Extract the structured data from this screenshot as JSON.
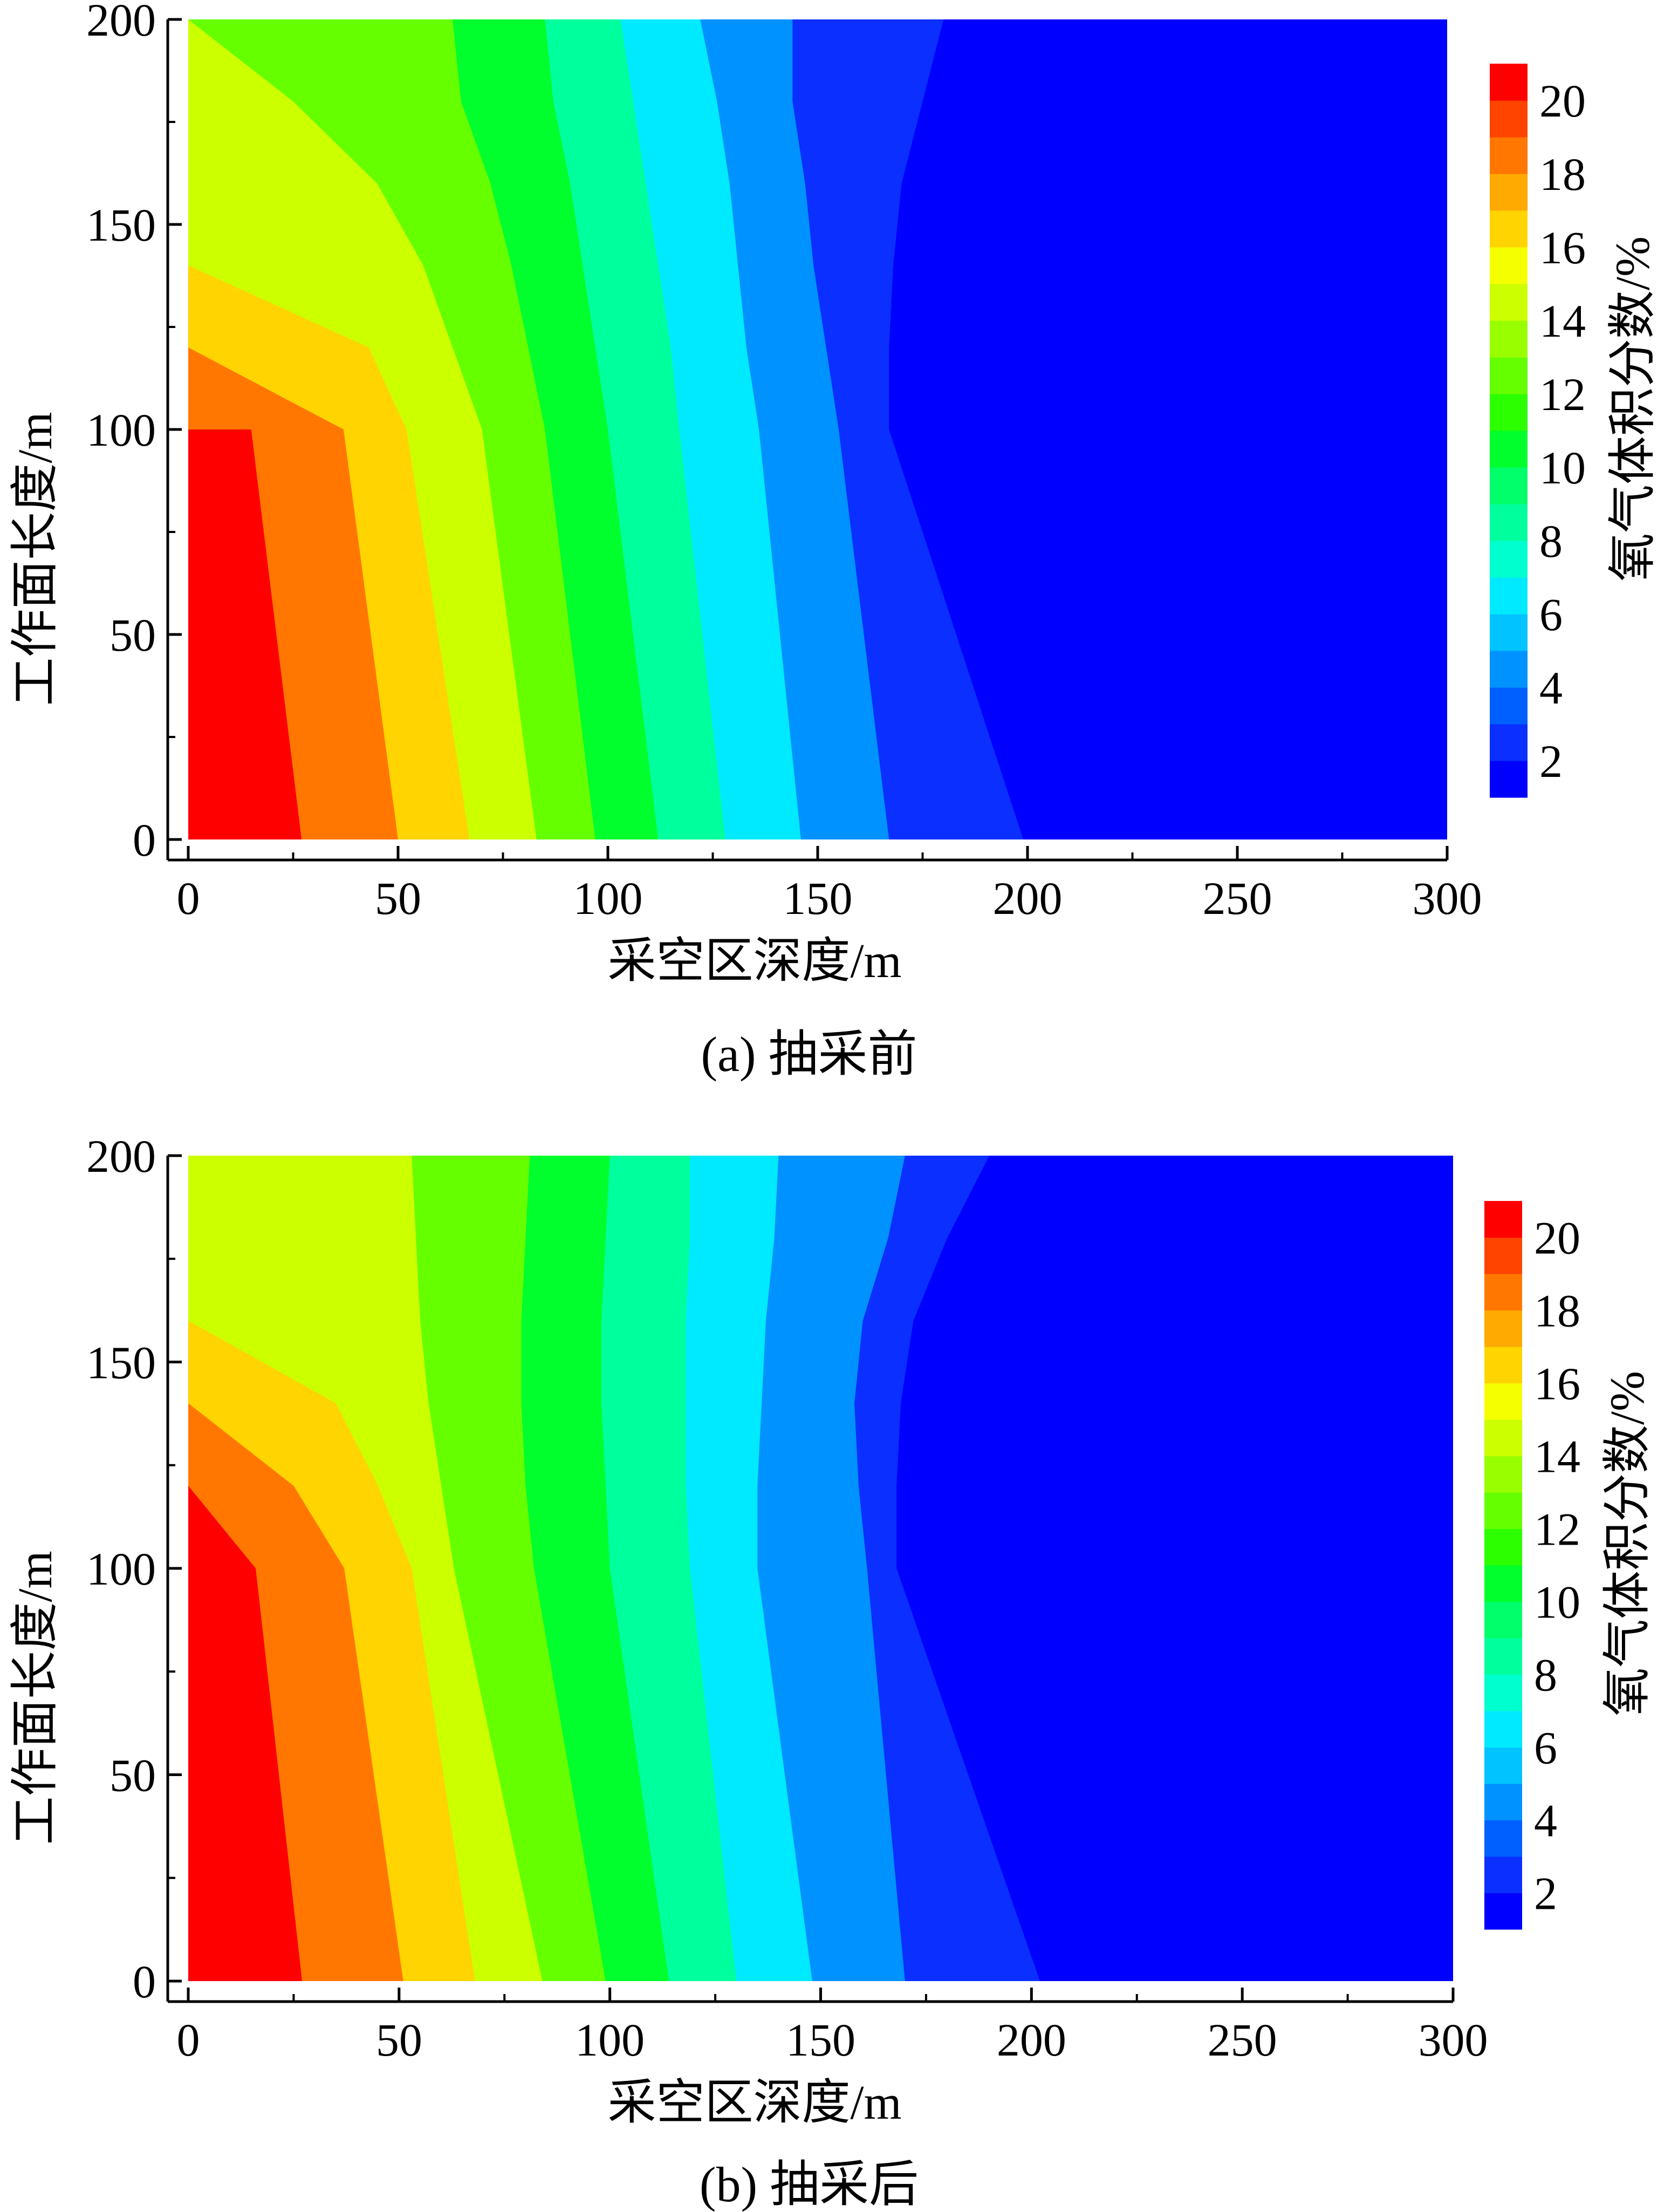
{
  "chart_data": [
    {
      "type": "heatmap",
      "title": "",
      "caption": "(a)  抽采前",
      "xlabel": "采空区深度/m",
      "ylabel": "工作面长度/m",
      "xlim": [
        0,
        300
      ],
      "ylim": [
        0,
        200
      ],
      "xticks": [
        "0",
        "50",
        "100",
        "150",
        "200",
        "250",
        "300"
      ],
      "yticks": [
        "0",
        "50",
        "100",
        "150",
        "200"
      ],
      "colorbar": {
        "label": "氧气体积分数/%",
        "ticks": [
          "2",
          "4",
          "6",
          "8",
          "10",
          "12",
          "14",
          "16",
          "18",
          "20"
        ],
        "range": [
          1,
          21
        ],
        "position": "right"
      },
      "levels": [
        2,
        4,
        6,
        8,
        10,
        12,
        14,
        16,
        18,
        20
      ],
      "contours_x_at_y": {
        "y": [
          0,
          100,
          120,
          140,
          160,
          180,
          200
        ],
        "lines": [
          {
            "level": 20,
            "x": [
              27,
              15,
              null,
              null,
              null,
              null,
              null
            ]
          },
          {
            "level": 18,
            "x": [
              50,
              37,
              0,
              null,
              null,
              null,
              null
            ]
          },
          {
            "level": 16,
            "x": [
              67,
              52,
              43,
              0,
              null,
              null,
              null
            ]
          },
          {
            "level": 14,
            "x": [
              83,
              70,
              63,
              56,
              45,
              25,
              0
            ]
          },
          {
            "level": 12,
            "x": [
              97,
              85,
              81,
              77,
              72,
              65,
              63
            ]
          },
          {
            "level": 10,
            "x": [
              112,
              100,
              97,
              94,
              91,
              87,
              85
            ]
          },
          {
            "level": 8,
            "x": [
              128,
              117,
              115,
              112,
              109,
              106,
              103
            ]
          },
          {
            "level": 6,
            "x": [
              146,
              136,
              133,
              131,
              129,
              126,
              122
            ]
          },
          {
            "level": 4,
            "x": [
              167,
              155,
              152,
              149,
              147,
              144,
              144
            ]
          },
          {
            "level": 2,
            "x": [
              199,
              167,
              167,
              168,
              170,
              175,
              180
            ]
          }
        ]
      }
    },
    {
      "type": "heatmap",
      "title": "",
      "caption": "(b)  抽采后",
      "xlabel": "采空区深度/m",
      "ylabel": "工作面长度/m",
      "xlim": [
        0,
        300
      ],
      "ylim": [
        0,
        200
      ],
      "xticks": [
        "0",
        "50",
        "100",
        "150",
        "200",
        "250",
        "300"
      ],
      "yticks": [
        "0",
        "50",
        "100",
        "150",
        "200"
      ],
      "colorbar": {
        "label": "氧气体积分数/%",
        "ticks": [
          "2",
          "4",
          "6",
          "8",
          "10",
          "12",
          "14",
          "16",
          "18",
          "20"
        ],
        "range": [
          1,
          21
        ],
        "position": "right"
      },
      "levels": [
        2,
        4,
        6,
        8,
        10,
        12,
        14,
        16,
        18,
        20
      ],
      "contours_x_at_y": {
        "y": [
          0,
          100,
          120,
          140,
          160,
          180,
          200
        ],
        "lines": [
          {
            "level": 20,
            "x": [
              27,
              16,
              0,
              null,
              null,
              null,
              null
            ]
          },
          {
            "level": 18,
            "x": [
              51,
              37,
              25,
              0,
              null,
              null,
              null
            ]
          },
          {
            "level": 16,
            "x": [
              68,
              53,
              45,
              35,
              0,
              null,
              null
            ]
          },
          {
            "level": 14,
            "x": [
              84,
              63,
              60,
              57,
              55,
              54,
              53
            ]
          },
          {
            "level": 12,
            "x": [
              99,
              82,
              80,
              79,
              79,
              80,
              81
            ]
          },
          {
            "level": 10,
            "x": [
              114,
              100,
              99,
              98,
              98,
              99,
              100
            ]
          },
          {
            "level": 8,
            "x": [
              130,
              119,
              118,
              118,
              118,
              119,
              119
            ]
          },
          {
            "level": 6,
            "x": [
              148,
              135,
              135,
              136,
              137,
              139,
              140
            ]
          },
          {
            "level": 4,
            "x": [
              170,
              161,
              159,
              158,
              160,
              166,
              170
            ]
          },
          {
            "level": 2,
            "x": [
              202,
              168,
              168,
              169,
              172,
              180,
              190
            ]
          }
        ]
      }
    }
  ]
}
